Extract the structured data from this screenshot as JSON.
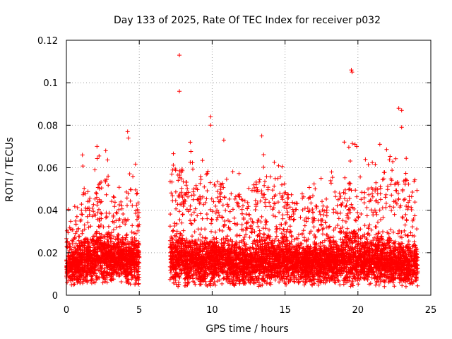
{
  "chart_data": {
    "type": "scatter",
    "title": "Day 133 of 2025, Rate Of TEC Index for receiver p032",
    "xlabel": "GPS time / hours",
    "ylabel": "ROTI / TECUs",
    "xlim": [
      0,
      25
    ],
    "ylim": [
      0,
      0.12
    ],
    "x_ticks": [
      "0",
      "5",
      "10",
      "15",
      "20",
      "25"
    ],
    "x_tick_values": [
      0,
      5,
      10,
      15,
      20,
      25
    ],
    "y_ticks": [
      "0",
      "0.02",
      "0.04",
      "0.06",
      "0.08",
      "0.1",
      "0.12"
    ],
    "y_tick_values": [
      0,
      0.02,
      0.04,
      0.06,
      0.08,
      0.1,
      0.12
    ],
    "grid": true,
    "marker": "plus",
    "series_color": "#ff0000",
    "gap_hours": [
      5.0,
      7.1
    ],
    "notable_points": [
      {
        "x": 7.75,
        "y": 0.113
      },
      {
        "x": 7.75,
        "y": 0.096
      },
      {
        "x": 9.9,
        "y": 0.084
      },
      {
        "x": 9.9,
        "y": 0.08
      },
      {
        "x": 19.55,
        "y": 0.106
      },
      {
        "x": 19.6,
        "y": 0.105
      },
      {
        "x": 22.8,
        "y": 0.088
      },
      {
        "x": 23.0,
        "y": 0.087
      },
      {
        "x": 23.0,
        "y": 0.079
      },
      {
        "x": 4.2,
        "y": 0.077
      },
      {
        "x": 4.25,
        "y": 0.074
      },
      {
        "x": 13.4,
        "y": 0.075
      },
      {
        "x": 8.5,
        "y": 0.072
      },
      {
        "x": 10.8,
        "y": 0.073
      },
      {
        "x": 2.1,
        "y": 0.07
      },
      {
        "x": 2.7,
        "y": 0.068
      },
      {
        "x": 1.1,
        "y": 0.066
      },
      {
        "x": 21.5,
        "y": 0.071
      },
      {
        "x": 19.8,
        "y": 0.071
      }
    ],
    "bulk_profile": [
      {
        "x0": 0.0,
        "x1": 1.0,
        "base": 0.014,
        "spread": 0.01,
        "top": 0.035
      },
      {
        "x0": 1.0,
        "x1": 2.0,
        "base": 0.016,
        "spread": 0.012,
        "top": 0.05
      },
      {
        "x0": 2.0,
        "x1": 3.0,
        "base": 0.018,
        "spread": 0.013,
        "top": 0.058
      },
      {
        "x0": 3.0,
        "x1": 4.0,
        "base": 0.017,
        "spread": 0.011,
        "top": 0.045
      },
      {
        "x0": 4.0,
        "x1": 5.0,
        "base": 0.016,
        "spread": 0.012,
        "top": 0.05
      },
      {
        "x0": 7.1,
        "x1": 8.0,
        "base": 0.017,
        "spread": 0.014,
        "top": 0.06
      },
      {
        "x0": 8.0,
        "x1": 9.0,
        "base": 0.016,
        "spread": 0.013,
        "top": 0.055
      },
      {
        "x0": 9.0,
        "x1": 10.0,
        "base": 0.016,
        "spread": 0.013,
        "top": 0.06
      },
      {
        "x0": 10.0,
        "x1": 11.0,
        "base": 0.016,
        "spread": 0.012,
        "top": 0.055
      },
      {
        "x0": 11.0,
        "x1": 12.0,
        "base": 0.015,
        "spread": 0.011,
        "top": 0.048
      },
      {
        "x0": 12.0,
        "x1": 13.0,
        "base": 0.015,
        "spread": 0.011,
        "top": 0.045
      },
      {
        "x0": 13.0,
        "x1": 14.0,
        "base": 0.016,
        "spread": 0.013,
        "top": 0.055
      },
      {
        "x0": 14.0,
        "x1": 15.0,
        "base": 0.016,
        "spread": 0.012,
        "top": 0.055
      },
      {
        "x0": 15.0,
        "x1": 16.0,
        "base": 0.015,
        "spread": 0.011,
        "top": 0.05
      },
      {
        "x0": 16.0,
        "x1": 17.0,
        "base": 0.015,
        "spread": 0.011,
        "top": 0.048
      },
      {
        "x0": 17.0,
        "x1": 18.0,
        "base": 0.015,
        "spread": 0.011,
        "top": 0.047
      },
      {
        "x0": 18.0,
        "x1": 19.0,
        "base": 0.016,
        "spread": 0.012,
        "top": 0.048
      },
      {
        "x0": 19.0,
        "x1": 20.0,
        "base": 0.017,
        "spread": 0.014,
        "top": 0.06
      },
      {
        "x0": 20.0,
        "x1": 21.0,
        "base": 0.016,
        "spread": 0.012,
        "top": 0.052
      },
      {
        "x0": 21.0,
        "x1": 22.0,
        "base": 0.016,
        "spread": 0.013,
        "top": 0.058
      },
      {
        "x0": 22.0,
        "x1": 23.0,
        "base": 0.015,
        "spread": 0.012,
        "top": 0.055
      },
      {
        "x0": 23.0,
        "x1": 24.1,
        "base": 0.014,
        "spread": 0.011,
        "top": 0.055
      }
    ]
  }
}
